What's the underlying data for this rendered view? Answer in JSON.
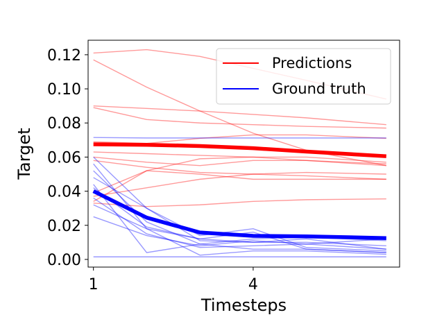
{
  "chart_data": {
    "type": "line",
    "xlabel": "Timesteps",
    "ylabel": "Target",
    "xlim": [
      0.9,
      6.75
    ],
    "ylim": [
      -0.0045,
      0.1285
    ],
    "x": [
      1,
      2,
      3,
      4,
      5,
      6.5
    ],
    "x_ticks": [
      1,
      4
    ],
    "x_tick_labels": [
      "1",
      "4"
    ],
    "y_ticks": [
      0.0,
      0.02,
      0.04,
      0.06,
      0.08,
      0.1,
      0.12
    ],
    "y_tick_labels": [
      "0.00",
      "0.02",
      "0.04",
      "0.06",
      "0.08",
      "0.10",
      "0.12"
    ],
    "grid": false,
    "legend": {
      "position": "top-right",
      "entries": [
        {
          "label": "Predictions",
          "color": "#ff0000"
        },
        {
          "label": "Ground truth",
          "color": "#0000ff"
        }
      ]
    },
    "colors": {
      "predictions": "#ff0000",
      "ground_truth": "#0000ff"
    },
    "prediction_runs": [
      [
        0.121,
        0.123,
        0.119,
        0.112,
        0.105,
        0.094
      ],
      [
        0.117,
        0.101,
        0.087,
        0.074,
        0.064,
        0.055
      ],
      [
        0.09,
        0.0885,
        0.087,
        0.085,
        0.083,
        0.079
      ],
      [
        0.089,
        0.082,
        0.08,
        0.079,
        0.078,
        0.077
      ],
      [
        0.069,
        0.068,
        0.071,
        0.073,
        0.073,
        0.071
      ],
      [
        0.063,
        0.062,
        0.061,
        0.06,
        0.058,
        0.056
      ],
      [
        0.06,
        0.057,
        0.055,
        0.058,
        0.058,
        0.055
      ],
      [
        0.058,
        0.054,
        0.051,
        0.05,
        0.049,
        0.047
      ],
      [
        0.039,
        0.052,
        0.059,
        0.06,
        0.06,
        0.057
      ],
      [
        0.037,
        0.042,
        0.047,
        0.05,
        0.051,
        0.05
      ],
      [
        0.034,
        0.052,
        0.05,
        0.047,
        0.047,
        0.047
      ],
      [
        0.033,
        0.031,
        0.032,
        0.034,
        0.035,
        0.0355
      ]
    ],
    "ground_truth_runs": [
      [
        0.0715,
        0.0712,
        0.0712,
        0.0712,
        0.0712,
        0.0712
      ],
      [
        0.06,
        0.03,
        0.011,
        0.01,
        0.012,
        0.006
      ],
      [
        0.056,
        0.018,
        0.012,
        0.016,
        0.006,
        0.004
      ],
      [
        0.052,
        0.022,
        0.009,
        0.012,
        0.013,
        0.011
      ],
      [
        0.048,
        0.03,
        0.014,
        0.018,
        0.007,
        0.005
      ],
      [
        0.044,
        0.004,
        0.009,
        0.006,
        0.006,
        0.004
      ],
      [
        0.042,
        0.019,
        0.012,
        0.01,
        0.01,
        0.008
      ],
      [
        0.036,
        0.015,
        0.007,
        0.008,
        0.009,
        0.006
      ],
      [
        0.032,
        0.018,
        0.0025,
        0.005,
        0.005,
        0.003
      ],
      [
        0.025,
        0.014,
        0.008,
        0.011,
        0.009,
        0.012
      ],
      [
        0.0015,
        0.0015,
        0.0015,
        0.0015,
        0.0015,
        0.0015
      ]
    ],
    "series": [
      {
        "name": "Predictions",
        "values": [
          0.0675,
          0.0672,
          0.0665,
          0.0652,
          0.0632,
          0.0605
        ]
      },
      {
        "name": "Ground truth",
        "values": [
          0.04,
          0.0245,
          0.0158,
          0.0138,
          0.0135,
          0.0125
        ]
      }
    ]
  }
}
